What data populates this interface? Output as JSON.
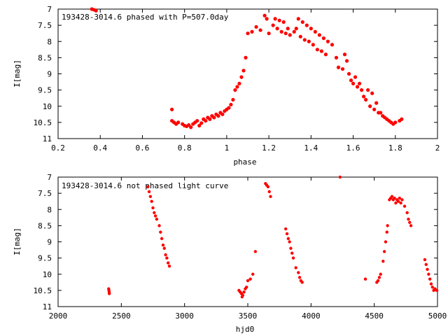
{
  "chart_data": [
    {
      "type": "scatter",
      "title": "193428-3014.6 phased with P=507.0day",
      "xlabel": "phase",
      "ylabel": "I[mag]",
      "xlim": [
        0.2,
        2.0
      ],
      "ylim": [
        11,
        7
      ],
      "y_inverted": true,
      "grid": false,
      "color": "#ff0000",
      "xticks": [
        "0.2",
        "0.4",
        "0.6",
        "0.8",
        "1",
        "1.2",
        "1.4",
        "1.6",
        "1.8",
        "2"
      ],
      "yticks": [
        "7",
        "7.5",
        "8",
        "8.5",
        "9",
        "9.5",
        "10",
        "10.5",
        "11"
      ],
      "points": [
        [
          0.36,
          7.0
        ],
        [
          0.37,
          7.02
        ],
        [
          0.38,
          7.05
        ],
        [
          0.74,
          10.1
        ],
        [
          0.74,
          10.45
        ],
        [
          0.75,
          10.5
        ],
        [
          0.76,
          10.55
        ],
        [
          0.77,
          10.5
        ],
        [
          0.79,
          10.55
        ],
        [
          0.8,
          10.6
        ],
        [
          0.81,
          10.62
        ],
        [
          0.82,
          10.58
        ],
        [
          0.83,
          10.65
        ],
        [
          0.84,
          10.55
        ],
        [
          0.85,
          10.5
        ],
        [
          0.86,
          10.45
        ],
        [
          0.87,
          10.6
        ],
        [
          0.88,
          10.52
        ],
        [
          0.89,
          10.4
        ],
        [
          0.9,
          10.45
        ],
        [
          0.91,
          10.35
        ],
        [
          0.92,
          10.4
        ],
        [
          0.93,
          10.3
        ],
        [
          0.94,
          10.35
        ],
        [
          0.95,
          10.25
        ],
        [
          0.96,
          10.3
        ],
        [
          0.97,
          10.2
        ],
        [
          0.98,
          10.25
        ],
        [
          0.99,
          10.15
        ],
        [
          1.0,
          10.1
        ],
        [
          1.01,
          10.05
        ],
        [
          1.02,
          9.95
        ],
        [
          1.03,
          9.8
        ],
        [
          1.04,
          9.5
        ],
        [
          1.05,
          9.4
        ],
        [
          1.06,
          9.3
        ],
        [
          1.07,
          9.1
        ],
        [
          1.08,
          8.9
        ],
        [
          1.09,
          8.5
        ],
        [
          1.1,
          7.75
        ],
        [
          1.12,
          7.7
        ],
        [
          1.14,
          7.55
        ],
        [
          1.16,
          7.65
        ],
        [
          1.18,
          7.2
        ],
        [
          1.19,
          7.3
        ],
        [
          1.2,
          7.75
        ],
        [
          1.22,
          7.5
        ],
        [
          1.23,
          7.3
        ],
        [
          1.24,
          7.6
        ],
        [
          1.25,
          7.35
        ],
        [
          1.26,
          7.7
        ],
        [
          1.27,
          7.4
        ],
        [
          1.28,
          7.75
        ],
        [
          1.29,
          7.6
        ],
        [
          1.3,
          7.8
        ],
        [
          1.32,
          7.7
        ],
        [
          1.33,
          7.6
        ],
        [
          1.34,
          7.3
        ],
        [
          1.35,
          7.85
        ],
        [
          1.36,
          7.4
        ],
        [
          1.37,
          7.95
        ],
        [
          1.38,
          7.5
        ],
        [
          1.39,
          8.0
        ],
        [
          1.4,
          7.6
        ],
        [
          1.41,
          8.1
        ],
        [
          1.42,
          7.7
        ],
        [
          1.43,
          8.25
        ],
        [
          1.44,
          7.8
        ],
        [
          1.45,
          8.3
        ],
        [
          1.46,
          7.9
        ],
        [
          1.47,
          8.4
        ],
        [
          1.48,
          8.0
        ],
        [
          1.5,
          8.1
        ],
        [
          1.52,
          8.5
        ],
        [
          1.53,
          8.8
        ],
        [
          1.55,
          8.85
        ],
        [
          1.56,
          8.4
        ],
        [
          1.57,
          8.6
        ],
        [
          1.58,
          9.0
        ],
        [
          1.59,
          9.2
        ],
        [
          1.6,
          9.3
        ],
        [
          1.61,
          9.1
        ],
        [
          1.62,
          9.4
        ],
        [
          1.63,
          9.3
        ],
        [
          1.64,
          9.5
        ],
        [
          1.65,
          9.7
        ],
        [
          1.66,
          9.8
        ],
        [
          1.67,
          9.5
        ],
        [
          1.68,
          10.0
        ],
        [
          1.69,
          9.6
        ],
        [
          1.7,
          10.1
        ],
        [
          1.71,
          9.9
        ],
        [
          1.72,
          10.2
        ],
        [
          1.73,
          10.2
        ],
        [
          1.74,
          10.3
        ],
        [
          1.75,
          10.35
        ],
        [
          1.76,
          10.4
        ],
        [
          1.77,
          10.45
        ],
        [
          1.78,
          10.5
        ],
        [
          1.79,
          10.55
        ],
        [
          1.8,
          10.5
        ],
        [
          1.82,
          10.45
        ],
        [
          1.83,
          10.4
        ]
      ]
    },
    {
      "type": "scatter",
      "title": "193428-3014.6 not phased light curve",
      "xlabel": "hjd0",
      "ylabel": "I[mag]",
      "xlim": [
        2000,
        5000
      ],
      "ylim": [
        11,
        7
      ],
      "y_inverted": true,
      "grid": false,
      "color": "#ff0000",
      "xticks": [
        "2000",
        "2500",
        "3000",
        "3500",
        "4000",
        "4500",
        "5000"
      ],
      "yticks": [
        "7",
        "7.5",
        "8",
        "8.5",
        "9",
        "9.5",
        "10",
        "10.5",
        "11"
      ],
      "points": [
        [
          2400,
          10.45
        ],
        [
          2402,
          10.5
        ],
        [
          2404,
          10.55
        ],
        [
          2405,
          10.6
        ],
        [
          2710,
          7.3
        ],
        [
          2720,
          7.45
        ],
        [
          2730,
          7.6
        ],
        [
          2740,
          7.75
        ],
        [
          2750,
          7.95
        ],
        [
          2760,
          8.1
        ],
        [
          2770,
          8.2
        ],
        [
          2780,
          8.3
        ],
        [
          2800,
          8.5
        ],
        [
          2810,
          8.7
        ],
        [
          2820,
          8.9
        ],
        [
          2830,
          9.1
        ],
        [
          2840,
          9.2
        ],
        [
          2850,
          9.4
        ],
        [
          2860,
          9.5
        ],
        [
          2870,
          9.65
        ],
        [
          2880,
          9.75
        ],
        [
          3430,
          10.5
        ],
        [
          3440,
          10.55
        ],
        [
          3450,
          10.6
        ],
        [
          3455,
          10.7
        ],
        [
          3460,
          10.65
        ],
        [
          3470,
          10.55
        ],
        [
          3480,
          10.45
        ],
        [
          3490,
          10.4
        ],
        [
          3500,
          10.2
        ],
        [
          3520,
          10.15
        ],
        [
          3540,
          10.0
        ],
        [
          3560,
          9.3
        ],
        [
          3640,
          7.2
        ],
        [
          3650,
          7.25
        ],
        [
          3660,
          7.3
        ],
        [
          3670,
          7.45
        ],
        [
          3680,
          7.6
        ],
        [
          3800,
          8.6
        ],
        [
          3810,
          8.75
        ],
        [
          3820,
          8.9
        ],
        [
          3830,
          9.0
        ],
        [
          3840,
          9.2
        ],
        [
          3850,
          9.35
        ],
        [
          3860,
          9.5
        ],
        [
          3880,
          9.8
        ],
        [
          3900,
          9.95
        ],
        [
          3910,
          10.1
        ],
        [
          3920,
          10.2
        ],
        [
          3930,
          10.25
        ],
        [
          4230,
          7.0
        ],
        [
          4430,
          10.15
        ],
        [
          4520,
          10.25
        ],
        [
          4530,
          10.2
        ],
        [
          4540,
          10.1
        ],
        [
          4550,
          10.0
        ],
        [
          4570,
          9.6
        ],
        [
          4580,
          9.3
        ],
        [
          4590,
          9.0
        ],
        [
          4600,
          8.7
        ],
        [
          4605,
          8.5
        ],
        [
          4620,
          7.7
        ],
        [
          4630,
          7.65
        ],
        [
          4640,
          7.6
        ],
        [
          4650,
          7.7
        ],
        [
          4660,
          7.65
        ],
        [
          4670,
          7.8
        ],
        [
          4680,
          7.7
        ],
        [
          4690,
          7.75
        ],
        [
          4700,
          7.65
        ],
        [
          4710,
          7.8
        ],
        [
          4720,
          7.7
        ],
        [
          4740,
          7.9
        ],
        [
          4760,
          8.1
        ],
        [
          4770,
          8.3
        ],
        [
          4780,
          8.4
        ],
        [
          4790,
          8.5
        ],
        [
          4900,
          9.55
        ],
        [
          4910,
          9.7
        ],
        [
          4920,
          9.85
        ],
        [
          4930,
          10.0
        ],
        [
          4940,
          10.15
        ],
        [
          4950,
          10.3
        ],
        [
          4960,
          10.4
        ],
        [
          4970,
          10.5
        ],
        [
          4980,
          10.45
        ],
        [
          4995,
          10.5
        ]
      ]
    }
  ]
}
